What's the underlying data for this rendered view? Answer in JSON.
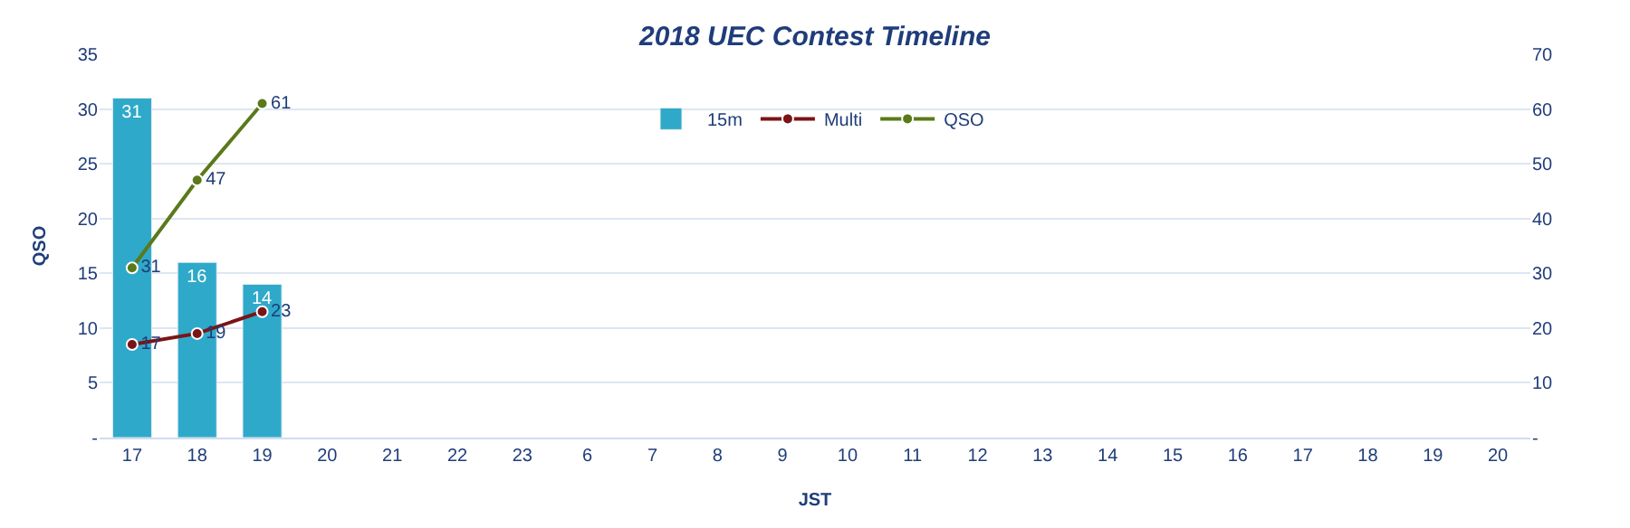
{
  "chart_data": {
    "type": "bar",
    "title": "2018 UEC Contest Timeline",
    "xlabel": "JST",
    "ylabel": "QSO",
    "categories": [
      "17",
      "18",
      "19",
      "20",
      "21",
      "22",
      "23",
      "6",
      "7",
      "8",
      "9",
      "10",
      "11",
      "12",
      "13",
      "14",
      "15",
      "16",
      "17",
      "18",
      "19",
      "20"
    ],
    "series": [
      {
        "name": "15m",
        "color": "#2fa9c9",
        "values": [
          31,
          16,
          14,
          null,
          null,
          null,
          null,
          null,
          null,
          null,
          null,
          null,
          null,
          null,
          null,
          null,
          null,
          null,
          null,
          null,
          null,
          null
        ]
      },
      {
        "name": "Multi",
        "type": "line",
        "axis": "y2",
        "color": "#7b1416",
        "values": [
          17,
          19,
          23,
          null,
          null,
          null,
          null,
          null,
          null,
          null,
          null,
          null,
          null,
          null,
          null,
          null,
          null,
          null,
          null,
          null,
          null,
          null
        ]
      },
      {
        "name": "QSO",
        "type": "line",
        "axis": "y2",
        "color": "#5a7a1a",
        "values": [
          31,
          47,
          61,
          null,
          null,
          null,
          null,
          null,
          null,
          null,
          null,
          null,
          null,
          null,
          null,
          null,
          null,
          null,
          null,
          null,
          null,
          null
        ]
      }
    ],
    "ylim": [
      0,
      35
    ],
    "yticks": [
      {
        "value": 0,
        "label": "-"
      },
      5,
      10,
      15,
      20,
      25,
      30,
      35
    ],
    "y2lim": [
      0,
      70
    ],
    "y2ticks": [
      {
        "value": 0,
        "label": "-"
      },
      10,
      20,
      30,
      40,
      50,
      60,
      70
    ],
    "data_labels": true,
    "grid": "y",
    "legend": "top",
    "marker": "circle",
    "line_style": "solid"
  }
}
